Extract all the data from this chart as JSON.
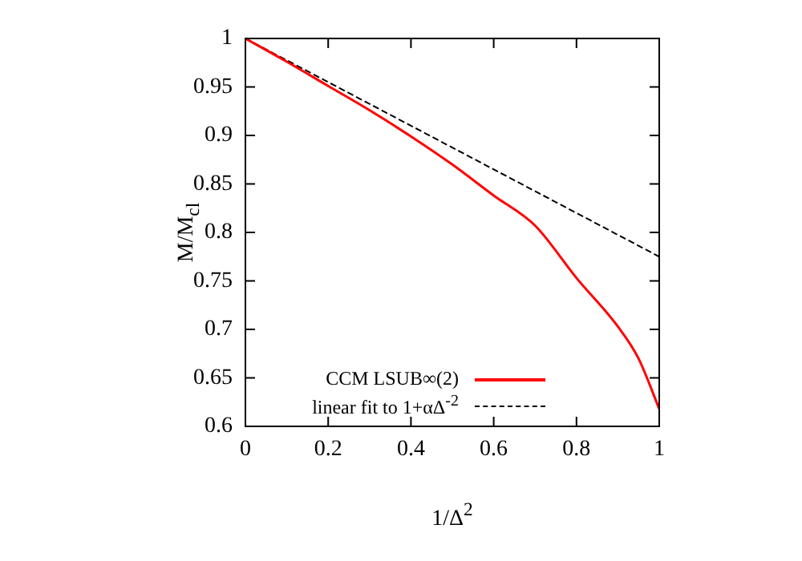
{
  "chart_data": {
    "type": "line",
    "xlabel": "1/Δ$^{2}$",
    "ylabel": "M/M$_{cl}$",
    "xlim": [
      0,
      1
    ],
    "xticks": [
      0,
      0.2,
      0.4,
      0.6,
      0.8,
      1
    ],
    "ylim": [
      0.6,
      1
    ],
    "yticks": [
      0.6,
      0.65,
      0.7,
      0.75,
      0.8,
      0.85,
      0.9,
      0.95,
      1
    ],
    "grid": false,
    "legend": "bottom",
    "marker": "none",
    "series": [
      {
        "name": "CCM LSUB∞(2)",
        "color": "#ff0000",
        "line_style": "solid",
        "x": [
          0,
          0.1,
          0.2,
          0.3,
          0.4,
          0.5,
          0.6,
          0.7,
          0.8,
          0.9,
          0.95,
          1
        ],
        "values": [
          1,
          0.976,
          0.951,
          0.926,
          0.899,
          0.87,
          0.838,
          0.807,
          0.753,
          0.703,
          0.67,
          0.618
        ]
      },
      {
        "name": "linear fit to 1+αΔ$^{-2}$",
        "color": "#000000",
        "line_style": "dashed",
        "x": [
          0,
          1
        ],
        "values": [
          1,
          0.775
        ]
      }
    ]
  }
}
